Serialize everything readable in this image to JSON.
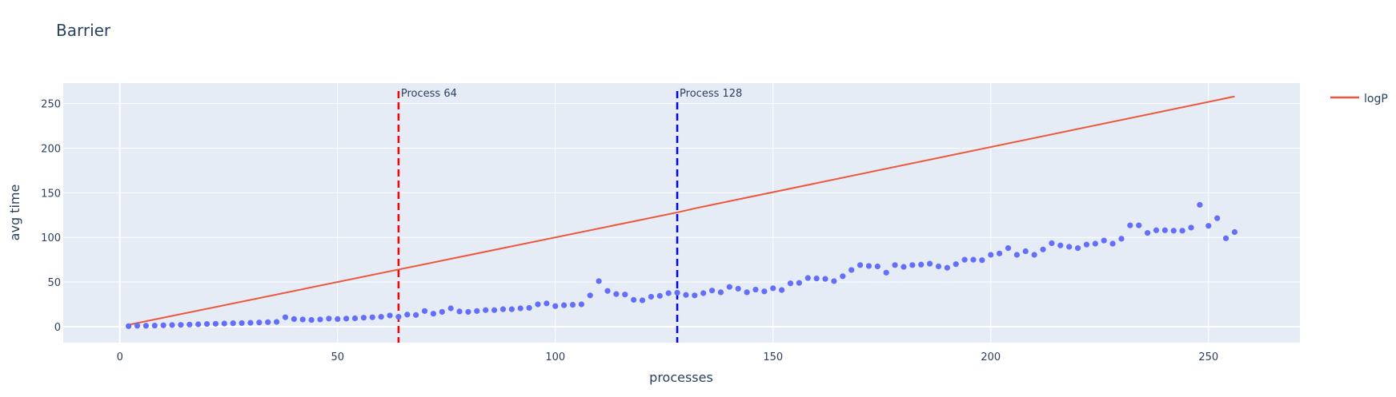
{
  "chart_data": {
    "type": "scatter",
    "title": "Barrier",
    "xlabel": "processes",
    "ylabel": "avg time",
    "xlim": [
      -13,
      271
    ],
    "ylim": [
      -18,
      273
    ],
    "xticks": [
      0,
      50,
      100,
      150,
      200,
      250
    ],
    "yticks": [
      0,
      50,
      100,
      150,
      200,
      250
    ],
    "grid": true,
    "legend_position": "top-right",
    "colors": {
      "plot_bg": "#e5ecf6",
      "points": "#636efa",
      "logP": "#ef553b",
      "vline_64": "#ff0000",
      "vline_128": "#0000ff",
      "text": "#2a3f5f"
    },
    "series": [
      {
        "type": "scatter",
        "x": [
          2,
          4,
          6,
          8,
          10,
          12,
          14,
          16,
          18,
          20,
          22,
          24,
          26,
          28,
          30,
          32,
          34,
          36,
          38,
          40,
          42,
          44,
          46,
          48,
          50,
          52,
          54,
          56,
          58,
          60,
          62,
          64,
          66,
          68,
          70,
          72,
          74,
          76,
          78,
          80,
          82,
          84,
          86,
          88,
          90,
          92,
          94,
          96,
          98,
          100,
          102,
          104,
          106,
          108,
          110,
          112,
          114,
          116,
          118,
          120,
          122,
          124,
          126,
          128,
          130,
          132,
          134,
          136,
          138,
          140,
          142,
          144,
          146,
          148,
          150,
          152,
          154,
          156,
          158,
          160,
          162,
          164,
          166,
          168,
          170,
          172,
          174,
          176,
          178,
          180,
          182,
          184,
          186,
          188,
          190,
          192,
          194,
          196,
          198,
          200,
          202,
          204,
          206,
          208,
          210,
          212,
          214,
          216,
          218,
          220,
          222,
          224,
          226,
          228,
          230,
          232,
          234,
          236,
          238,
          240,
          242,
          244,
          246,
          248,
          250,
          252,
          254,
          256
        ],
        "y": [
          0.5,
          1,
          1,
          1.2,
          1.5,
          1.8,
          2,
          2.3,
          2.6,
          3,
          3.2,
          3.5,
          3.8,
          4,
          4.3,
          4.6,
          5,
          5.3,
          10.5,
          8.5,
          8,
          7.5,
          8,
          9,
          8.5,
          9,
          9.3,
          10,
          10.5,
          11,
          12.5,
          11,
          13.5,
          13,
          17.5,
          14.5,
          16.5,
          20.5,
          17,
          16.5,
          17.5,
          18.5,
          18.5,
          19.5,
          19.5,
          20.5,
          21,
          25,
          26,
          23,
          24,
          24.5,
          25,
          35,
          51,
          40,
          36.5,
          36,
          30,
          29.5,
          33.5,
          34.5,
          37.5,
          38,
          35.5,
          35,
          37.5,
          40.5,
          38.5,
          44.5,
          42.5,
          38.5,
          41.5,
          39.5,
          43,
          41,
          48.5,
          49,
          54.5,
          54,
          53.5,
          51,
          56.5,
          63.5,
          69,
          68,
          67.5,
          60.5,
          69,
          67,
          69,
          69.5,
          70.5,
          67.5,
          66,
          70,
          75,
          75,
          74.5,
          80.5,
          82,
          88,
          80.5,
          84.5,
          80.5,
          86.5,
          93.5,
          91,
          89.5,
          88,
          92,
          93,
          96.5,
          93,
          98.5,
          113.5,
          113.5,
          105,
          108,
          108,
          107.5,
          107.5,
          111,
          136.5,
          113,
          121.5,
          99,
          106
        ]
      },
      {
        "name": "logP",
        "type": "line",
        "x": [
          2,
          128,
          132,
          256
        ],
        "y": [
          2,
          128,
          132.5,
          258
        ]
      }
    ],
    "vlines": [
      {
        "x": 64,
        "label": "Process 64"
      },
      {
        "x": 128,
        "label": "Process 128"
      }
    ]
  }
}
